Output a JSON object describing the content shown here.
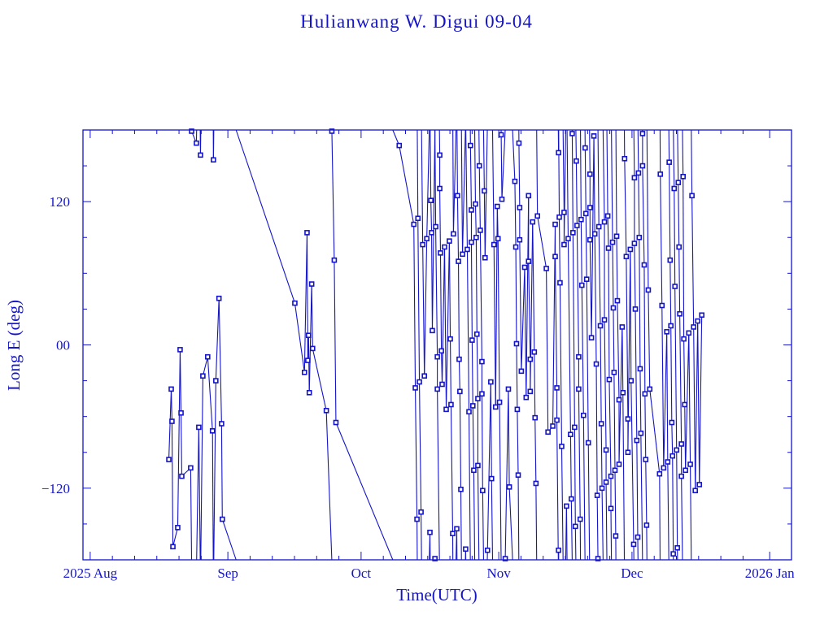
{
  "chart_data": {
    "type": "line",
    "title": "Hulianwang W. Digui 09-04",
    "xlabel": "Time(UTC)",
    "ylabel": "Long E (deg)",
    "xlim": [
      "2025-07-30 09:00",
      "2026-01-05 22:00"
    ],
    "ylim": [
      -180,
      180
    ],
    "x_ticks": [
      {
        "date": "2025-08-01 00:00",
        "label": "2025 Aug"
      },
      {
        "date": "2025-09-01 00:00",
        "label": "Sep"
      },
      {
        "date": "2025-10-01 00:00",
        "label": "Oct"
      },
      {
        "date": "2025-11-01 00:00",
        "label": "Nov"
      },
      {
        "date": "2025-12-01 00:00",
        "label": "Dec"
      },
      {
        "date": "2026-01-01 00:00",
        "label": "2026 Jan"
      }
    ],
    "y_ticks": [
      {
        "value": 120,
        "label": "120"
      },
      {
        "value": 0,
        "label": "00"
      },
      {
        "value": -120,
        "label": "−120"
      }
    ],
    "y_minor_step": 30,
    "x_minor_step_days": 5,
    "grid": false,
    "markers": "square",
    "color": "#1414c8",
    "points": [
      [
        "2025-08-18 17:00",
        -96
      ],
      [
        "2025-08-19 06:00",
        -37
      ],
      [
        "2025-08-19 10:00",
        -64
      ],
      [
        "2025-08-19 15:00",
        -169
      ],
      [
        "2025-08-20 17:00",
        -153
      ],
      [
        "2025-08-21 06:00",
        -4
      ],
      [
        "2025-08-21 11:00",
        -57
      ],
      [
        "2025-08-21 15:00",
        -110
      ],
      [
        "2025-08-23 15:00",
        -103
      ],
      [
        "2025-08-23 20:00",
        179
      ],
      [
        "2025-08-24 22:00",
        169
      ],
      [
        "2025-08-25 11:00",
        -69
      ],
      [
        "2025-08-25 20:00",
        159
      ],
      [
        "2025-08-26 09:00",
        -26
      ],
      [
        "2025-08-27 11:00",
        -10
      ],
      [
        "2025-08-28 13:00",
        -72
      ],
      [
        "2025-08-28 18:00",
        155
      ],
      [
        "2025-08-29 07:00",
        -30
      ],
      [
        "2025-08-30 00:00",
        39
      ],
      [
        "2025-08-30 14:00",
        -66
      ],
      [
        "2025-08-30 18:00",
        -146
      ],
      [
        "2025-09-16 02:00",
        35
      ],
      [
        "2025-09-18 06:00",
        -23
      ],
      [
        "2025-09-18 20:00",
        94
      ],
      [
        "2025-09-19 00:00",
        -13
      ],
      [
        "2025-09-19 04:00",
        8
      ],
      [
        "2025-09-19 08:00",
        -40
      ],
      [
        "2025-09-19 21:00",
        51
      ],
      [
        "2025-09-20 02:00",
        -3
      ],
      [
        "2025-09-23 04:00",
        -55
      ],
      [
        "2025-09-24 10:00",
        179
      ],
      [
        "2025-09-24 23:00",
        71
      ],
      [
        "2025-09-25 08:00",
        -65
      ],
      [
        "2025-10-09 14:00",
        167
      ],
      [
        "2025-10-12 21:00",
        101
      ],
      [
        "2025-10-13 05:00",
        -36
      ],
      [
        "2025-10-13 14:00",
        -146
      ],
      [
        "2025-10-13 19:00",
        106
      ],
      [
        "2025-10-14 03:00",
        -31
      ],
      [
        "2025-10-14 12:00",
        -140
      ],
      [
        "2025-10-14 21:00",
        84
      ],
      [
        "2025-10-15 06:00",
        -26
      ],
      [
        "2025-10-15 19:00",
        89
      ],
      [
        "2025-10-16 12:00",
        -157
      ],
      [
        "2025-10-16 17:00",
        121
      ],
      [
        "2025-10-16 21:00",
        94
      ],
      [
        "2025-10-17 01:00",
        12
      ],
      [
        "2025-10-17 15:00",
        -179
      ],
      [
        "2025-10-17 19:00",
        99
      ],
      [
        "2025-10-18 04:00",
        -10
      ],
      [
        "2025-10-18 04:00",
        -37
      ],
      [
        "2025-10-18 17:00",
        159
      ],
      [
        "2025-10-18 17:00",
        131
      ],
      [
        "2025-10-18 21:00",
        77
      ],
      [
        "2025-10-19 02:00",
        -5
      ],
      [
        "2025-10-19 06:00",
        -33
      ],
      [
        "2025-10-19 19:00",
        82
      ],
      [
        "2025-10-20 04:00",
        -54
      ],
      [
        "2025-10-20 21:00",
        87
      ],
      [
        "2025-10-21 02:00",
        5
      ],
      [
        "2025-10-21 06:00",
        -50
      ],
      [
        "2025-10-21 15:00",
        -158
      ],
      [
        "2025-10-21 19:00",
        93
      ],
      [
        "2025-10-22 13:00",
        -154
      ],
      [
        "2025-10-22 17:00",
        125
      ],
      [
        "2025-10-22 22:00",
        70
      ],
      [
        "2025-10-23 02:00",
        -12
      ],
      [
        "2025-10-23 06:00",
        -39
      ],
      [
        "2025-10-23 11:00",
        -121
      ],
      [
        "2025-10-23 20:00",
        76
      ],
      [
        "2025-10-24 13:00",
        -171
      ],
      [
        "2025-10-24 22:00",
        80
      ],
      [
        "2025-10-25 07:00",
        -56
      ],
      [
        "2025-10-25 15:00",
        167
      ],
      [
        "2025-10-25 20:00",
        113
      ],
      [
        "2025-10-25 20:00",
        86
      ],
      [
        "2025-10-26 00:00",
        4
      ],
      [
        "2025-10-26 04:00",
        -51
      ],
      [
        "2025-10-26 09:00",
        -105
      ],
      [
        "2025-10-26 18:00",
        118
      ],
      [
        "2025-10-26 22:00",
        90
      ],
      [
        "2025-10-27 02:00",
        9
      ],
      [
        "2025-10-27 07:00",
        -45
      ],
      [
        "2025-10-27 07:00",
        -101
      ],
      [
        "2025-10-27 15:00",
        150
      ],
      [
        "2025-10-27 20:00",
        96
      ],
      [
        "2025-10-28 05:00",
        -14
      ],
      [
        "2025-10-28 05:00",
        -41
      ],
      [
        "2025-10-28 09:00",
        -122
      ],
      [
        "2025-10-28 18:00",
        129
      ],
      [
        "2025-10-28 22:00",
        73
      ],
      [
        "2025-10-29 11:00",
        -172
      ],
      [
        "2025-10-30 05:00",
        -31
      ],
      [
        "2025-10-30 09:00",
        -112
      ],
      [
        "2025-10-30 22:00",
        84
      ],
      [
        "2025-10-31 07:00",
        -52
      ],
      [
        "2025-10-31 16:00",
        116
      ],
      [
        "2025-10-31 20:00",
        89
      ],
      [
        "2025-11-01 04:00",
        -48
      ],
      [
        "2025-11-01 13:00",
        176
      ],
      [
        "2025-11-01 17:00",
        122
      ],
      [
        "2025-11-02 11:00",
        -179
      ],
      [
        "2025-11-03 04:00",
        -37
      ],
      [
        "2025-11-03 09:00",
        -119
      ],
      [
        "2025-11-04 15:00",
        137
      ],
      [
        "2025-11-04 20:00",
        82
      ],
      [
        "2025-11-05 00:00",
        1
      ],
      [
        "2025-11-05 04:00",
        -54
      ],
      [
        "2025-11-05 09:00",
        -109
      ],
      [
        "2025-11-05 13:00",
        169
      ],
      [
        "2025-11-05 17:00",
        115
      ],
      [
        "2025-11-05 17:00",
        88
      ],
      [
        "2025-11-06 02:00",
        -22
      ],
      [
        "2025-11-06 20:00",
        65
      ],
      [
        "2025-11-07 04:00",
        -44
      ],
      [
        "2025-11-07 17:00",
        125
      ],
      [
        "2025-11-07 17:00",
        70
      ],
      [
        "2025-11-08 02:00",
        -12
      ],
      [
        "2025-11-08 02:00",
        -39
      ],
      [
        "2025-11-08 15:00",
        103
      ],
      [
        "2025-11-09 00:00",
        -6
      ],
      [
        "2025-11-09 04:00",
        -61
      ],
      [
        "2025-11-09 09:00",
        -116
      ],
      [
        "2025-11-09 17:00",
        108
      ],
      [
        "2025-11-11 17:00",
        64
      ],
      [
        "2025-11-12 02:00",
        -73
      ],
      [
        "2025-11-13 04:00",
        -68
      ],
      [
        "2025-11-13 17:00",
        101
      ],
      [
        "2025-11-13 17:00",
        74
      ],
      [
        "2025-11-14 02:00",
        -36
      ],
      [
        "2025-11-14 02:00",
        -63
      ],
      [
        "2025-11-14 11:00",
        161
      ],
      [
        "2025-11-14 11:00",
        -172
      ],
      [
        "2025-11-14 15:00",
        107
      ],
      [
        "2025-11-14 19:00",
        52
      ],
      [
        "2025-11-15 04:00",
        -85
      ],
      [
        "2025-11-15 17:00",
        111
      ],
      [
        "2025-11-15 17:00",
        84
      ],
      [
        "2025-11-16 06:00",
        -135
      ],
      [
        "2025-11-16 15:00",
        89
      ],
      [
        "2025-11-17 04:00",
        -75
      ],
      [
        "2025-11-17 08:00",
        -129
      ],
      [
        "2025-11-17 13:00",
        177
      ],
      [
        "2025-11-17 17:00",
        94
      ],
      [
        "2025-11-18 02:00",
        -69
      ],
      [
        "2025-11-18 06:00",
        -152
      ],
      [
        "2025-11-18 11:00",
        154
      ],
      [
        "2025-11-18 15:00",
        100
      ],
      [
        "2025-11-19 00:00",
        -10
      ],
      [
        "2025-11-19 00:00",
        -37
      ],
      [
        "2025-11-19 08:00",
        -146
      ],
      [
        "2025-11-19 13:00",
        105
      ],
      [
        "2025-11-19 17:00",
        50
      ],
      [
        "2025-11-20 02:00",
        -59
      ],
      [
        "2025-11-20 11:00",
        165
      ],
      [
        "2025-11-20 15:00",
        110
      ],
      [
        "2025-11-20 19:00",
        55
      ],
      [
        "2025-11-21 04:00",
        -82
      ],
      [
        "2025-11-21 13:00",
        143
      ],
      [
        "2025-11-21 13:00",
        115
      ],
      [
        "2025-11-21 13:00",
        88
      ],
      [
        "2025-11-21 21:00",
        6
      ],
      [
        "2025-11-22 10:00",
        175
      ],
      [
        "2025-11-22 15:00",
        93
      ],
      [
        "2025-11-22 23:00",
        -16
      ],
      [
        "2025-11-23 04:00",
        -126
      ],
      [
        "2025-11-23 08:00",
        -179
      ],
      [
        "2025-11-23 13:00",
        99
      ],
      [
        "2025-11-23 21:00",
        16
      ],
      [
        "2025-11-24 02:00",
        -66
      ],
      [
        "2025-11-24 06:00",
        -120
      ],
      [
        "2025-11-24 19:00",
        103
      ],
      [
        "2025-11-24 19:00",
        21
      ],
      [
        "2025-11-25 04:00",
        -88
      ],
      [
        "2025-11-25 04:00",
        -115
      ],
      [
        "2025-11-25 13:00",
        108
      ],
      [
        "2025-11-25 17:00",
        81
      ],
      [
        "2025-11-25 21:00",
        -29
      ],
      [
        "2025-11-26 06:00",
        -110
      ],
      [
        "2025-11-26 06:00",
        -137
      ],
      [
        "2025-11-26 15:00",
        86
      ],
      [
        "2025-11-26 19:00",
        31
      ],
      [
        "2025-11-26 23:00",
        -23
      ],
      [
        "2025-11-27 04:00",
        -105
      ],
      [
        "2025-11-27 08:00",
        -160
      ],
      [
        "2025-11-27 13:00",
        91
      ],
      [
        "2025-11-27 17:00",
        37
      ],
      [
        "2025-11-28 02:00",
        -46
      ],
      [
        "2025-11-28 02:00",
        -100
      ],
      [
        "2025-11-28 19:00",
        15
      ],
      [
        "2025-11-28 23:00",
        -40
      ],
      [
        "2025-11-29 08:00",
        156
      ],
      [
        "2025-11-29 17:00",
        74
      ],
      [
        "2025-11-30 02:00",
        -62
      ],
      [
        "2025-11-30 02:00",
        -90
      ],
      [
        "2025-11-30 15:00",
        80
      ],
      [
        "2025-11-30 19:00",
        -30
      ],
      [
        "2025-12-01 09:00",
        -167
      ],
      [
        "2025-12-01 13:00",
        140
      ],
      [
        "2025-12-01 13:00",
        85
      ],
      [
        "2025-12-01 18:00",
        30
      ],
      [
        "2025-12-02 02:00",
        -80
      ],
      [
        "2025-12-02 07:00",
        -161
      ],
      [
        "2025-12-02 11:00",
        144
      ],
      [
        "2025-12-02 15:00",
        90
      ],
      [
        "2025-12-02 20:00",
        -20
      ],
      [
        "2025-12-03 00:00",
        -74
      ],
      [
        "2025-12-03 09:00",
        177
      ],
      [
        "2025-12-03 09:00",
        150
      ],
      [
        "2025-12-03 18:00",
        67
      ],
      [
        "2025-12-03 22:00",
        -41
      ],
      [
        "2025-12-04 02:00",
        -96
      ],
      [
        "2025-12-04 07:00",
        -151
      ],
      [
        "2025-12-04 16:00",
        46
      ],
      [
        "2025-12-05 00:00",
        -37
      ],
      [
        "2025-12-07 05:00",
        -108
      ],
      [
        "2025-12-07 09:00",
        143
      ],
      [
        "2025-12-07 18:00",
        33
      ],
      [
        "2025-12-08 03:00",
        -103
      ],
      [
        "2025-12-08 20:00",
        11
      ],
      [
        "2025-12-09 01:00",
        -98
      ],
      [
        "2025-12-09 09:00",
        153
      ],
      [
        "2025-12-09 14:00",
        71
      ],
      [
        "2025-12-09 18:00",
        16
      ],
      [
        "2025-12-09 23:00",
        -65
      ],
      [
        "2025-12-10 03:00",
        -93
      ],
      [
        "2025-12-10 07:00",
        -175
      ],
      [
        "2025-12-10 12:00",
        131
      ],
      [
        "2025-12-10 16:00",
        49
      ],
      [
        "2025-12-11 01:00",
        -88
      ],
      [
        "2025-12-11 05:00",
        -170
      ],
      [
        "2025-12-11 10:00",
        136
      ],
      [
        "2025-12-11 14:00",
        82
      ],
      [
        "2025-12-11 18:00",
        26
      ],
      [
        "2025-12-12 03:00",
        -83
      ],
      [
        "2025-12-12 03:00",
        -110
      ],
      [
        "2025-12-12 12:00",
        141
      ],
      [
        "2025-12-12 16:00",
        5
      ],
      [
        "2025-12-12 21:00",
        -50
      ],
      [
        "2025-12-13 01:00",
        -105
      ],
      [
        "2025-12-13 19:00",
        10
      ],
      [
        "2025-12-14 03:00",
        -100
      ],
      [
        "2025-12-14 12:00",
        125
      ],
      [
        "2025-12-14 21:00",
        15
      ],
      [
        "2025-12-15 06:00",
        -122
      ],
      [
        "2025-12-15 19:00",
        20
      ],
      [
        "2025-12-16 04:00",
        -117
      ],
      [
        "2025-12-16 17:00",
        25
      ]
    ]
  }
}
